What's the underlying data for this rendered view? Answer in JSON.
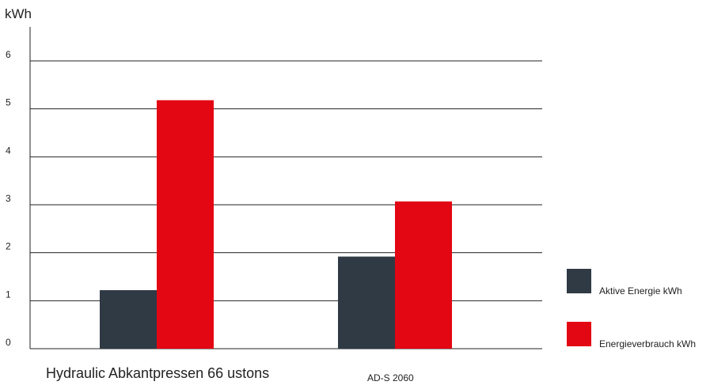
{
  "chart_data": {
    "type": "bar",
    "ylabel": "kWh",
    "ylim": [
      0,
      6
    ],
    "yticks": [
      "0",
      "1",
      "2",
      "3",
      "4",
      "5",
      "6"
    ],
    "categories": [
      "Hydraulic Abkantpressen 66 ustons",
      "AD-S 2060"
    ],
    "series": [
      {
        "name": "Aktive Energie kWh",
        "color": "#2f3a45",
        "values": [
          1.22,
          1.92
        ]
      },
      {
        "name": "Energieverbrauch kWh",
        "color": "#e30613",
        "values": [
          5.18,
          3.07
        ]
      }
    ],
    "grid": true,
    "legend": "right"
  }
}
